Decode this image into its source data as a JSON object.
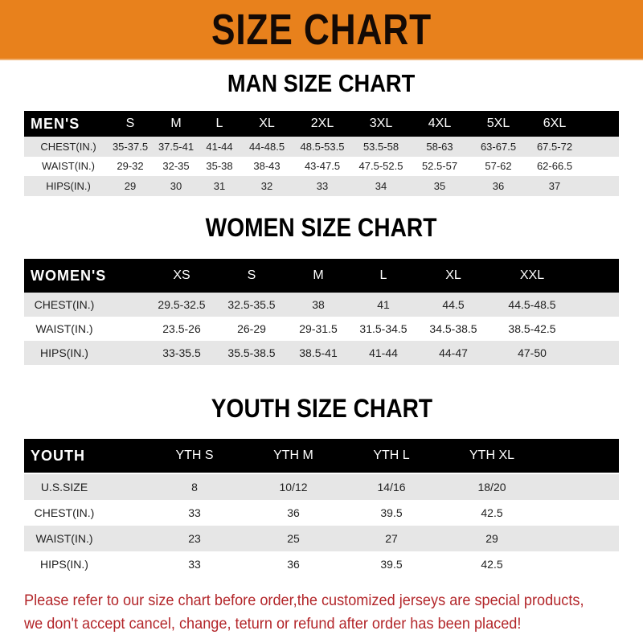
{
  "banner_title": "SIZE CHART",
  "colors": {
    "banner": "#e8811c",
    "header_row": "#000000",
    "stripe": "#e6e6e6",
    "note": "#b3262a"
  },
  "men": {
    "title": "MAN SIZE CHART",
    "header": [
      "MEN'S",
      "S",
      "M",
      "L",
      "XL",
      "2XL",
      "3XL",
      "4XL",
      "5XL",
      "6XL"
    ],
    "rows": [
      [
        "CHEST(IN.)",
        "35-37.5",
        "37.5-41",
        "41-44",
        "44-48.5",
        "48.5-53.5",
        "53.5-58",
        "58-63",
        "63-67.5",
        "67.5-72"
      ],
      [
        "WAIST(IN.)",
        "29-32",
        "32-35",
        "35-38",
        "38-43",
        "43-47.5",
        "47.5-52.5",
        "52.5-57",
        "57-62",
        "62-66.5"
      ],
      [
        "HIPS(IN.)",
        "29",
        "30",
        "31",
        "32",
        "33",
        "34",
        "35",
        "36",
        "37"
      ]
    ]
  },
  "women": {
    "title": "WOMEN SIZE CHART",
    "header": [
      "WOMEN'S",
      "XS",
      "S",
      "M",
      "L",
      "XL",
      "XXL"
    ],
    "rows": [
      [
        "CHEST(IN.)",
        "29.5-32.5",
        "32.5-35.5",
        "38",
        "41",
        "44.5",
        "44.5-48.5"
      ],
      [
        "WAIST(IN.)",
        "23.5-26",
        "26-29",
        "29-31.5",
        "31.5-34.5",
        "34.5-38.5",
        "38.5-42.5"
      ],
      [
        "HIPS(IN.)",
        "33-35.5",
        "35.5-38.5",
        "38.5-41",
        "41-44",
        "44-47",
        "47-50"
      ]
    ]
  },
  "youth": {
    "title": "YOUTH SIZE CHART",
    "header": [
      "YOUTH",
      "YTH S",
      "YTH M",
      "YTH L",
      "YTH XL"
    ],
    "rows": [
      [
        "U.S.SIZE",
        "8",
        "10/12",
        "14/16",
        "18/20"
      ],
      [
        "CHEST(IN.)",
        "33",
        "36",
        "39.5",
        "42.5"
      ],
      [
        "WAIST(IN.)",
        "23",
        "25",
        "27",
        "29"
      ],
      [
        "HIPS(IN.)",
        "33",
        "36",
        "39.5",
        "42.5"
      ]
    ]
  },
  "note": [
    "Please refer to our size chart before order,the customized jerseys are special products,",
    "we don't accept cancel, change, teturn or refund after order has been placed!"
  ]
}
